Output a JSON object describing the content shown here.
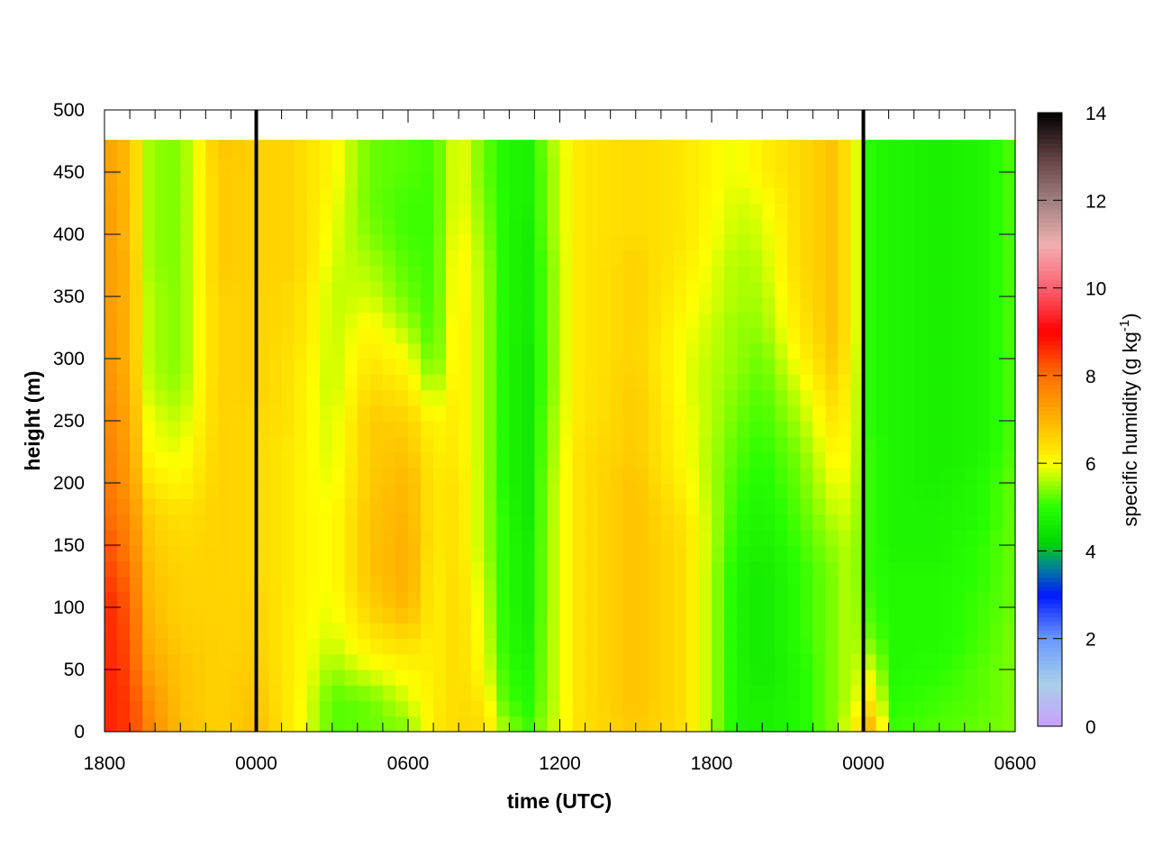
{
  "chart_data": {
    "type": "heatmap",
    "xlabel": "time (UTC)",
    "ylabel": "height (m)",
    "colorbar_label": "specific humidity (g kg",
    "colorbar_label_sup": "-1",
    "colorbar_label_end": ")",
    "x_ticks": [
      {
        "hour": 0,
        "label": "1800"
      },
      {
        "hour": 6,
        "label": "0000"
      },
      {
        "hour": 12,
        "label": "0600"
      },
      {
        "hour": 18,
        "label": "1200"
      },
      {
        "hour": 24,
        "label": "1800"
      },
      {
        "hour": 30,
        "label": "0000"
      },
      {
        "hour": 36,
        "label": "0600"
      }
    ],
    "x_range_hours": [
      0,
      36
    ],
    "y_ticks": [
      0,
      50,
      100,
      150,
      200,
      250,
      300,
      350,
      400,
      450,
      500
    ],
    "ylim": [
      0,
      500
    ],
    "data_top_height": 476,
    "colorbar_ticks": [
      0,
      2,
      4,
      6,
      8,
      10,
      12,
      14
    ],
    "colorbar_range": [
      0,
      14
    ],
    "colormap": [
      {
        "v": 0,
        "c": "#c8a0ff"
      },
      {
        "v": 1,
        "c": "#a8d0e8"
      },
      {
        "v": 2,
        "c": "#6a98ff"
      },
      {
        "v": 3,
        "c": "#0018ff"
      },
      {
        "v": 3.7,
        "c": "#008c8c"
      },
      {
        "v": 4.2,
        "c": "#00d800"
      },
      {
        "v": 5,
        "c": "#28ff00"
      },
      {
        "v": 6,
        "c": "#ffff00"
      },
      {
        "v": 7,
        "c": "#ffb400"
      },
      {
        "v": 8,
        "c": "#ff7000"
      },
      {
        "v": 9,
        "c": "#ff0000"
      },
      {
        "v": 10,
        "c": "#ff6070"
      },
      {
        "v": 11,
        "c": "#f0b0b0"
      },
      {
        "v": 12,
        "c": "#a08080"
      },
      {
        "v": 13,
        "c": "#604040"
      },
      {
        "v": 14,
        "c": "#000000"
      }
    ],
    "vertical_lines_hours": [
      6,
      30
    ],
    "heights": [
      0,
      25,
      50,
      75,
      100,
      125,
      150,
      175,
      200,
      225,
      250,
      275,
      300,
      325,
      350,
      375,
      400,
      425,
      450,
      476
    ],
    "columns": [
      {
        "t": 0.0,
        "q": [
          8.7,
          8.7,
          8.7,
          8.7,
          8.7,
          8.5,
          8.3,
          8.1,
          7.9,
          7.8,
          7.7,
          7.6,
          7.5,
          7.5,
          7.4,
          7.4,
          7.4,
          7.4,
          7.3,
          7.3
        ]
      },
      {
        "t": 1.0,
        "q": [
          8.5,
          8.5,
          8.4,
          8.3,
          8.2,
          8.0,
          7.8,
          7.6,
          7.4,
          7.3,
          7.2,
          7.1,
          7.0,
          7.0,
          7.0,
          7.0,
          6.9,
          6.9,
          6.9,
          6.9
        ]
      },
      {
        "t": 1.8,
        "q": [
          7.7,
          7.5,
          7.2,
          7.0,
          6.9,
          6.8,
          6.7,
          6.6,
          6.3,
          6.0,
          5.9,
          5.7,
          5.6,
          5.6,
          5.6,
          5.5,
          5.5,
          5.5,
          5.5,
          5.5
        ]
      },
      {
        "t": 3.0,
        "q": [
          6.9,
          6.8,
          6.8,
          6.7,
          6.6,
          6.6,
          6.5,
          6.4,
          6.1,
          5.9,
          5.7,
          5.5,
          5.4,
          5.4,
          5.4,
          5.4,
          5.4,
          5.4,
          5.4,
          5.4
        ]
      },
      {
        "t": 4.5,
        "q": [
          6.6,
          6.6,
          6.6,
          6.6,
          6.6,
          6.6,
          6.6,
          6.6,
          6.6,
          6.6,
          6.6,
          6.6,
          6.6,
          6.6,
          6.6,
          6.7,
          6.7,
          6.7,
          6.7,
          6.8
        ]
      },
      {
        "t": 6.0,
        "q": [
          6.9,
          6.8,
          6.7,
          6.6,
          6.6,
          6.5,
          6.5,
          6.5,
          6.5,
          6.5,
          6.5,
          6.6,
          6.6,
          6.6,
          6.6,
          6.6,
          6.6,
          6.6,
          6.6,
          6.6
        ]
      },
      {
        "t": 7.2,
        "q": [
          6.3,
          6.3,
          6.3,
          6.3,
          6.3,
          6.3,
          6.3,
          6.3,
          6.3,
          6.3,
          6.4,
          6.4,
          6.4,
          6.5,
          6.5,
          6.6,
          6.6,
          6.6,
          6.6,
          6.6
        ]
      },
      {
        "t": 8.0,
        "q": [
          5.9,
          5.9,
          6.0,
          6.0,
          6.1,
          6.1,
          6.1,
          6.1,
          6.1,
          6.1,
          6.1,
          6.1,
          6.2,
          6.3,
          6.3,
          6.4,
          6.4,
          6.4,
          6.4,
          6.4
        ]
      },
      {
        "t": 9.0,
        "q": [
          5.2,
          5.2,
          5.5,
          5.8,
          5.9,
          6.0,
          6.0,
          6.0,
          5.9,
          5.8,
          5.8,
          5.7,
          5.7,
          5.7,
          5.7,
          5.8,
          5.9,
          6.0,
          6.1,
          6.1
        ]
      },
      {
        "t": 10.5,
        "q": [
          5.3,
          5.3,
          5.9,
          6.3,
          6.6,
          6.8,
          6.8,
          6.8,
          6.7,
          6.7,
          6.7,
          6.5,
          6.3,
          6.1,
          5.8,
          5.6,
          5.4,
          5.3,
          5.3,
          5.3
        ]
      },
      {
        "t": 12.0,
        "q": [
          5.4,
          5.8,
          6.1,
          6.5,
          7.0,
          7.1,
          7.1,
          7.0,
          7.0,
          6.8,
          6.6,
          6.3,
          6.0,
          5.6,
          5.3,
          5.2,
          5.1,
          5.1,
          5.2,
          5.2
        ]
      },
      {
        "t": 13.0,
        "q": [
          6.3,
          6.2,
          6.2,
          6.2,
          6.2,
          6.2,
          6.3,
          6.3,
          6.3,
          6.2,
          6.1,
          5.6,
          5.2,
          5.1,
          5.1,
          5.1,
          5.1,
          5.1,
          5.1,
          5.1
        ]
      },
      {
        "t": 14.0,
        "q": [
          6.5,
          6.5,
          6.5,
          6.5,
          6.5,
          6.5,
          6.4,
          6.4,
          6.4,
          6.3,
          6.3,
          6.3,
          6.3,
          6.3,
          6.2,
          6.2,
          6.1,
          6.0,
          6.0,
          6.0
        ]
      },
      {
        "t": 15.0,
        "q": [
          6.5,
          6.3,
          6.0,
          5.9,
          5.8,
          5.7,
          5.6,
          5.6,
          5.6,
          5.6,
          5.6,
          5.6,
          5.6,
          5.6,
          5.6,
          5.6,
          5.5,
          5.4,
          5.3,
          5.3
        ]
      },
      {
        "t": 15.8,
        "q": [
          5.6,
          5.2,
          5.1,
          5.0,
          5.0,
          5.0,
          5.0,
          5.0,
          4.9,
          4.9,
          4.9,
          4.9,
          4.9,
          4.9,
          4.9,
          4.9,
          4.9,
          4.9,
          4.9,
          4.9
        ]
      },
      {
        "t": 16.7,
        "q": [
          5.1,
          4.9,
          4.8,
          4.7,
          4.6,
          4.6,
          4.6,
          4.5,
          4.5,
          4.5,
          4.5,
          4.5,
          4.5,
          4.6,
          4.6,
          4.6,
          4.6,
          4.7,
          4.7,
          4.7
        ]
      },
      {
        "t": 17.5,
        "q": [
          5.6,
          5.5,
          5.5,
          5.5,
          5.5,
          5.5,
          5.5,
          5.5,
          5.5,
          5.4,
          5.4,
          5.3,
          5.3,
          5.3,
          5.3,
          5.3,
          5.4,
          5.4,
          5.4,
          5.5
        ]
      },
      {
        "t": 18.8,
        "q": [
          6.4,
          6.4,
          6.4,
          6.4,
          6.4,
          6.4,
          6.4,
          6.4,
          6.4,
          6.4,
          6.3,
          6.3,
          6.3,
          6.3,
          6.3,
          6.3,
          6.3,
          6.3,
          6.3,
          6.3
        ]
      },
      {
        "t": 21.0,
        "q": [
          6.7,
          6.8,
          6.8,
          6.8,
          6.8,
          6.8,
          6.8,
          6.8,
          6.8,
          6.7,
          6.7,
          6.7,
          6.6,
          6.6,
          6.6,
          6.6,
          6.5,
          6.5,
          6.5,
          6.5
        ]
      },
      {
        "t": 23.0,
        "q": [
          6.4,
          6.4,
          6.4,
          6.4,
          6.4,
          6.4,
          6.4,
          6.3,
          6.1,
          6.0,
          6.0,
          5.9,
          5.9,
          6.0,
          6.1,
          6.2,
          6.3,
          6.3,
          6.3,
          6.3
        ]
      },
      {
        "t": 25.0,
        "q": [
          4.8,
          4.8,
          4.8,
          4.8,
          4.8,
          4.8,
          4.9,
          5.0,
          5.1,
          5.2,
          5.3,
          5.4,
          5.5,
          5.5,
          5.6,
          5.6,
          5.7,
          5.8,
          5.9,
          5.9
        ]
      },
      {
        "t": 26.0,
        "q": [
          4.7,
          4.7,
          4.6,
          4.6,
          4.6,
          4.6,
          4.7,
          4.8,
          4.9,
          5.0,
          5.1,
          5.2,
          5.3,
          5.5,
          5.6,
          5.7,
          5.8,
          5.9,
          6.2,
          6.2
        ]
      },
      {
        "t": 27.5,
        "q": [
          4.9,
          4.9,
          4.9,
          5.0,
          5.0,
          5.0,
          5.1,
          5.2,
          5.3,
          5.4,
          5.6,
          5.8,
          6.1,
          6.3,
          6.4,
          6.5,
          6.5,
          6.5,
          6.5,
          6.5
        ]
      },
      {
        "t": 28.8,
        "q": [
          5.4,
          5.4,
          5.4,
          5.4,
          5.4,
          5.4,
          5.5,
          5.7,
          5.9,
          6.1,
          6.3,
          6.5,
          6.7,
          6.8,
          6.8,
          6.8,
          6.8,
          6.8,
          6.8,
          6.8
        ]
      },
      {
        "t": 29.5,
        "q": [
          6.0,
          5.7,
          5.7,
          5.7,
          5.7,
          5.7,
          5.7,
          5.8,
          5.9,
          6.0,
          6.1,
          6.1,
          6.2,
          6.3,
          6.3,
          6.3,
          6.3,
          6.3,
          6.3,
          6.3
        ]
      },
      {
        "t": 30.3,
        "q": [
          7.1,
          6.3,
          5.8,
          5.3,
          5.1,
          5.0,
          5.0,
          5.0,
          5.0,
          5.0,
          4.9,
          4.9,
          4.9,
          4.9,
          4.9,
          4.9,
          4.9,
          4.9,
          4.9,
          4.9
        ]
      },
      {
        "t": 31.2,
        "q": [
          5.1,
          5.0,
          4.9,
          4.9,
          4.9,
          4.9,
          4.8,
          4.8,
          4.8,
          4.8,
          4.8,
          4.8,
          4.8,
          4.8,
          4.8,
          4.8,
          4.8,
          4.8,
          4.8,
          4.8
        ]
      },
      {
        "t": 33.0,
        "q": [
          5.2,
          5.1,
          5.0,
          4.9,
          4.9,
          4.9,
          4.8,
          4.8,
          4.7,
          4.7,
          4.7,
          4.7,
          4.7,
          4.7,
          4.7,
          4.7,
          4.7,
          4.7,
          4.7,
          4.7
        ]
      },
      {
        "t": 34.5,
        "q": [
          5.3,
          5.2,
          5.2,
          5.1,
          5.1,
          5.0,
          5.0,
          4.9,
          4.9,
          4.8,
          4.8,
          4.8,
          4.8,
          4.8,
          4.8,
          4.8,
          4.8,
          4.8,
          4.8,
          4.8
        ]
      },
      {
        "t": 36.0,
        "q": [
          5.4,
          5.4,
          5.4,
          5.4,
          5.3,
          5.3,
          5.3,
          5.3,
          5.3,
          5.2,
          5.2,
          5.2,
          5.2,
          5.2,
          5.2,
          5.2,
          5.2,
          5.2,
          5.2,
          5.2
        ]
      }
    ]
  }
}
